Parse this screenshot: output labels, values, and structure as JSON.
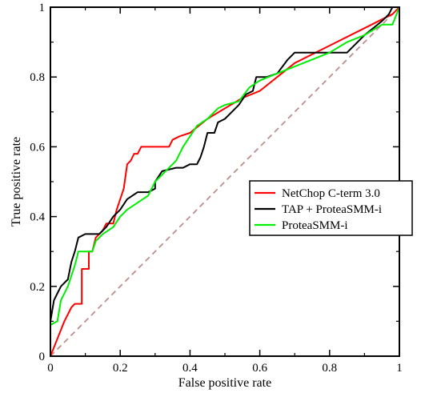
{
  "chart_data": {
    "type": "line",
    "title": "",
    "xlabel": "False positive rate",
    "ylabel": "True positive rate",
    "xlim": [
      0,
      1
    ],
    "ylim": [
      0,
      1
    ],
    "x_ticks": [
      "0",
      "0.2",
      "0.4",
      "0.6",
      "0.8",
      "1"
    ],
    "y_ticks": [
      "0",
      "0.2",
      "0.4",
      "0.6",
      "0.8",
      "1"
    ],
    "grid": false,
    "legend_position": "right",
    "diagonal": {
      "color": "#bc8f8f",
      "style": "dashed",
      "points": [
        [
          0,
          0
        ],
        [
          1,
          1
        ]
      ]
    },
    "series": [
      {
        "name": "NetChop C-term 3.0",
        "color": "#ff0000",
        "points": [
          [
            0,
            0
          ],
          [
            0.02,
            0.05
          ],
          [
            0.04,
            0.1
          ],
          [
            0.06,
            0.14
          ],
          [
            0.07,
            0.15
          ],
          [
            0.09,
            0.15
          ],
          [
            0.09,
            0.25
          ],
          [
            0.11,
            0.25
          ],
          [
            0.11,
            0.3
          ],
          [
            0.12,
            0.3
          ],
          [
            0.13,
            0.34
          ],
          [
            0.15,
            0.36
          ],
          [
            0.16,
            0.38
          ],
          [
            0.18,
            0.38
          ],
          [
            0.19,
            0.42
          ],
          [
            0.2,
            0.45
          ],
          [
            0.21,
            0.48
          ],
          [
            0.22,
            0.55
          ],
          [
            0.23,
            0.56
          ],
          [
            0.24,
            0.58
          ],
          [
            0.25,
            0.58
          ],
          [
            0.26,
            0.6
          ],
          [
            0.34,
            0.6
          ],
          [
            0.35,
            0.62
          ],
          [
            0.37,
            0.63
          ],
          [
            0.4,
            0.64
          ],
          [
            0.45,
            0.68
          ],
          [
            0.5,
            0.71
          ],
          [
            0.55,
            0.74
          ],
          [
            0.6,
            0.76
          ],
          [
            0.65,
            0.8
          ],
          [
            0.7,
            0.84
          ],
          [
            0.8,
            0.89
          ],
          [
            0.9,
            0.94
          ],
          [
            0.98,
            0.98
          ],
          [
            1,
            1
          ]
        ]
      },
      {
        "name": "TAP + ProteaSMM-i",
        "color": "#000000",
        "points": [
          [
            0,
            0
          ],
          [
            0,
            0.1
          ],
          [
            0.01,
            0.16
          ],
          [
            0.02,
            0.18
          ],
          [
            0.03,
            0.2
          ],
          [
            0.04,
            0.21
          ],
          [
            0.05,
            0.22
          ],
          [
            0.06,
            0.27
          ],
          [
            0.07,
            0.3
          ],
          [
            0.08,
            0.34
          ],
          [
            0.1,
            0.35
          ],
          [
            0.14,
            0.35
          ],
          [
            0.16,
            0.37
          ],
          [
            0.18,
            0.4
          ],
          [
            0.2,
            0.42
          ],
          [
            0.22,
            0.45
          ],
          [
            0.25,
            0.47
          ],
          [
            0.28,
            0.47
          ],
          [
            0.3,
            0.48
          ],
          [
            0.3,
            0.5
          ],
          [
            0.32,
            0.53
          ],
          [
            0.36,
            0.54
          ],
          [
            0.38,
            0.54
          ],
          [
            0.4,
            0.55
          ],
          [
            0.42,
            0.55
          ],
          [
            0.43,
            0.57
          ],
          [
            0.44,
            0.6
          ],
          [
            0.45,
            0.64
          ],
          [
            0.47,
            0.64
          ],
          [
            0.48,
            0.67
          ],
          [
            0.5,
            0.68
          ],
          [
            0.52,
            0.7
          ],
          [
            0.54,
            0.72
          ],
          [
            0.56,
            0.75
          ],
          [
            0.58,
            0.76
          ],
          [
            0.59,
            0.8
          ],
          [
            0.62,
            0.8
          ],
          [
            0.65,
            0.81
          ],
          [
            0.68,
            0.85
          ],
          [
            0.7,
            0.87
          ],
          [
            0.75,
            0.87
          ],
          [
            0.85,
            0.87
          ],
          [
            0.9,
            0.92
          ],
          [
            0.95,
            0.96
          ],
          [
            0.97,
            0.98
          ],
          [
            0.98,
            1
          ],
          [
            1,
            1
          ]
        ]
      },
      {
        "name": "ProteaSMM-i",
        "color": "#00ee00",
        "points": [
          [
            0,
            0
          ],
          [
            0,
            0.09
          ],
          [
            0.02,
            0.1
          ],
          [
            0.03,
            0.16
          ],
          [
            0.05,
            0.2
          ],
          [
            0.07,
            0.26
          ],
          [
            0.08,
            0.3
          ],
          [
            0.12,
            0.3
          ],
          [
            0.13,
            0.33
          ],
          [
            0.15,
            0.35
          ],
          [
            0.18,
            0.37
          ],
          [
            0.2,
            0.4
          ],
          [
            0.22,
            0.42
          ],
          [
            0.25,
            0.44
          ],
          [
            0.28,
            0.46
          ],
          [
            0.3,
            0.5
          ],
          [
            0.33,
            0.53
          ],
          [
            0.36,
            0.56
          ],
          [
            0.38,
            0.6
          ],
          [
            0.4,
            0.63
          ],
          [
            0.42,
            0.66
          ],
          [
            0.45,
            0.68
          ],
          [
            0.48,
            0.71
          ],
          [
            0.5,
            0.72
          ],
          [
            0.54,
            0.73
          ],
          [
            0.57,
            0.77
          ],
          [
            0.6,
            0.79
          ],
          [
            0.65,
            0.81
          ],
          [
            0.7,
            0.83
          ],
          [
            0.75,
            0.85
          ],
          [
            0.8,
            0.87
          ],
          [
            0.85,
            0.9
          ],
          [
            0.9,
            0.92
          ],
          [
            0.95,
            0.95
          ],
          [
            0.98,
            0.95
          ],
          [
            1,
            1
          ]
        ]
      }
    ]
  }
}
